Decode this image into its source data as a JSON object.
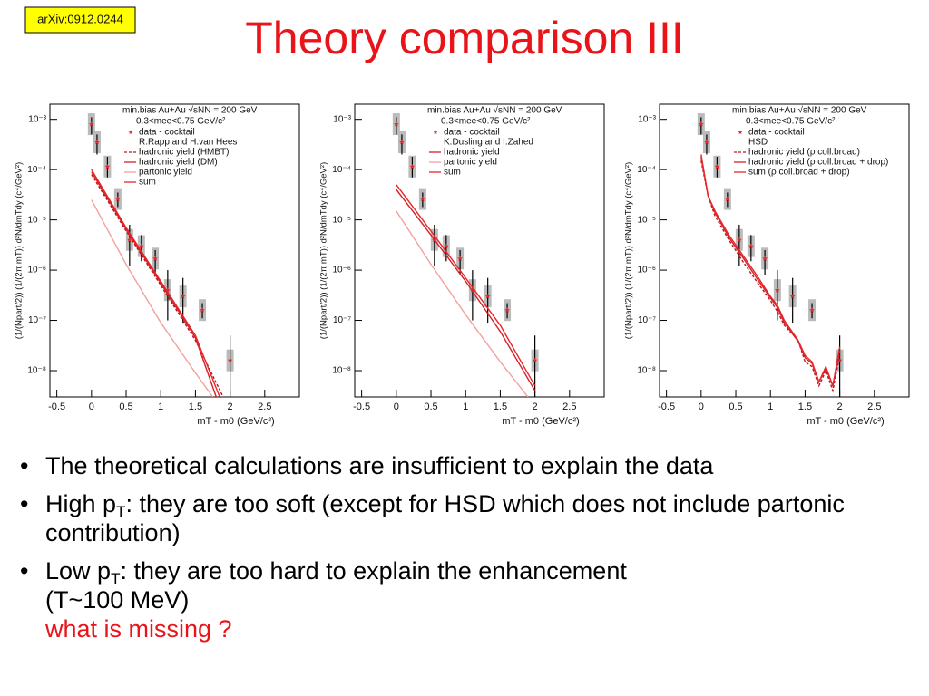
{
  "slide": {
    "title": "Theory comparison III",
    "reference": "arXiv:0912.0244",
    "bullets": [
      {
        "before": "The theoretical calculations are insufficient to explain the data"
      },
      {
        "before": "High p",
        "sub": "T",
        "after": ": they are too soft (except for HSD which does not include partonic contribution)"
      },
      {
        "before": "Low p",
        "sub": "T",
        "after": ": they are too hard to explain the enhancement",
        "line2": "(T~100 MeV)",
        "note": "what is missing ?"
      }
    ]
  },
  "chart_data": [
    {
      "type": "line",
      "log_y": true,
      "legend_header": [
        "min.bias Au+Au √sNN = 200 GeV",
        "0.3<mee<0.75 GeV/c²"
      ],
      "model": "R.Rapp and H.van Hees",
      "xlabel": "mT - m0 (GeV/c²)",
      "ylabel": "(1/(Npart/2)) (1/(2π mT)) d²N/dmTdy (c⁴/GeV²)",
      "xlim": [
        -0.6,
        3.0
      ],
      "ylim": [
        3e-09,
        0.002
      ],
      "xticks": [
        -0.5,
        0,
        0.5,
        1,
        1.5,
        2,
        2.5
      ],
      "yticks": [
        {
          "value": 1e-08,
          "label": "10⁻⁸"
        },
        {
          "value": 1e-07,
          "label": "10⁻⁷"
        },
        {
          "value": 1e-06,
          "label": "10⁻⁶"
        },
        {
          "value": 1e-05,
          "label": "10⁻⁵"
        },
        {
          "value": 0.0001,
          "label": "10⁻⁴"
        },
        {
          "value": 0.001,
          "label": "10⁻³"
        }
      ],
      "series": [
        {
          "name": "data - cocktail",
          "kind": "points",
          "color": "#e8262a",
          "x": [
            0,
            0.08,
            0.23,
            0.38,
            0.55,
            0.72,
            0.92,
            1.1,
            1.32,
            1.6,
            2.0
          ],
          "values": [
            0.0008,
            0.00035,
            0.000115,
            2.6e-05,
            4e-06,
            3e-06,
            1.7e-06,
            4e-07,
            3e-07,
            1.6e-07,
            1.6e-08
          ],
          "lower": [
            0.0005,
            0.0002,
            7e-05,
            1.8e-05,
            1.2e-06,
            1.5e-06,
            8e-07,
            1e-07,
            9e-08,
            1.1e-07,
            3e-09
          ],
          "upper": [
            0.0011,
            0.0005,
            0.00018,
            3.5e-05,
            8e-06,
            5e-06,
            2.5e-06,
            1e-06,
            7e-07,
            2.2e-07,
            5e-08
          ]
        },
        {
          "name": "hadronic yield (HMBT)",
          "dash": true,
          "color": "#c0141a",
          "x": [
            0,
            0.5,
            1.0,
            1.5,
            1.9
          ],
          "values": [
            8e-05,
            6e-06,
            5e-07,
            4e-08,
            3e-09
          ]
        },
        {
          "name": "hadronic yield (DM)",
          "color": "#d42026",
          "x": [
            0,
            0.5,
            1.0,
            1.5,
            1.8
          ],
          "values": [
            9e-05,
            6.5e-06,
            5.5e-07,
            4.5e-08,
            3e-09
          ]
        },
        {
          "name": "partonic yield",
          "color": "#f2a0a0",
          "x": [
            0,
            0.5,
            1.0,
            1.5,
            1.75
          ],
          "values": [
            2.5e-05,
            1.3e-06,
            9e-08,
            9e-09,
            3e-09
          ]
        },
        {
          "name": "sum",
          "color": "#e8262a",
          "x": [
            0,
            0.5,
            1.0,
            1.5,
            1.85
          ],
          "values": [
            0.0001,
            7e-06,
            6e-07,
            5e-08,
            3e-09
          ]
        }
      ]
    },
    {
      "type": "line",
      "log_y": true,
      "legend_header": [
        "min.bias Au+Au √sNN = 200 GeV",
        "0.3<mee<0.75 GeV/c²"
      ],
      "model": "K.Dusling and I.Zahed",
      "xlabel": "mT - m0 (GeV/c²)",
      "ylabel": "(1/(Npart/2)) (1/(2π mT)) d²N/dmTdy (c⁴/GeV²)",
      "xlim": [
        -0.6,
        3.0
      ],
      "ylim": [
        3e-09,
        0.002
      ],
      "xticks": [
        -0.5,
        0,
        0.5,
        1,
        1.5,
        2,
        2.5
      ],
      "yticks": [
        {
          "value": 1e-08,
          "label": "10⁻⁸"
        },
        {
          "value": 1e-07,
          "label": "10⁻⁷"
        },
        {
          "value": 1e-06,
          "label": "10⁻⁶"
        },
        {
          "value": 1e-05,
          "label": "10⁻⁵"
        },
        {
          "value": 0.0001,
          "label": "10⁻⁴"
        },
        {
          "value": 0.001,
          "label": "10⁻³"
        }
      ],
      "series": [
        {
          "name": "data - cocktail",
          "kind": "points",
          "color": "#e8262a",
          "x": [
            0,
            0.08,
            0.23,
            0.38,
            0.55,
            0.72,
            0.92,
            1.1,
            1.32,
            1.6,
            2.0
          ],
          "values": [
            0.0008,
            0.00035,
            0.000115,
            2.6e-05,
            4e-06,
            3e-06,
            1.7e-06,
            4e-07,
            3e-07,
            1.6e-07,
            1.6e-08
          ],
          "lower": [
            0.0005,
            0.0002,
            7e-05,
            1.8e-05,
            1.2e-06,
            1.5e-06,
            8e-07,
            1e-07,
            9e-08,
            1.1e-07,
            3e-09
          ],
          "upper": [
            0.0011,
            0.0005,
            0.00018,
            3.5e-05,
            8e-06,
            5e-06,
            2.5e-06,
            1e-06,
            7e-07,
            2.2e-07,
            5e-08
          ]
        },
        {
          "name": "hadronic yield",
          "color": "#d42026",
          "x": [
            0,
            0.5,
            1.0,
            1.5,
            2.0
          ],
          "values": [
            4e-05,
            5e-06,
            6e-07,
            6e-08,
            4e-09
          ]
        },
        {
          "name": "partonic yield",
          "color": "#f2a0a0",
          "x": [
            0,
            0.5,
            1.0,
            1.5,
            1.9
          ],
          "values": [
            1.5e-05,
            1.3e-06,
            1.3e-07,
            1.5e-08,
            3e-09
          ]
        },
        {
          "name": "sum",
          "color": "#e8262a",
          "x": [
            0,
            0.5,
            1.0,
            1.5,
            2.0
          ],
          "values": [
            5e-05,
            6e-06,
            7e-07,
            8e-08,
            5e-09
          ]
        }
      ]
    },
    {
      "type": "line",
      "log_y": true,
      "legend_header": [
        "min.bias Au+Au √sNN = 200 GeV",
        "0.3<mee<0.75 GeV/c²"
      ],
      "model": "HSD",
      "xlabel": "mT - m0 (GeV/c²)",
      "ylabel": "(1/(Npart/2)) (1/(2π mT)) d²N/dmTdy (c⁴/GeV²)",
      "xlim": [
        -0.6,
        3.0
      ],
      "ylim": [
        3e-09,
        0.002
      ],
      "xticks": [
        -0.5,
        0,
        0.5,
        1,
        1.5,
        2,
        2.5
      ],
      "yticks": [
        {
          "value": 1e-08,
          "label": "10⁻⁸"
        },
        {
          "value": 1e-07,
          "label": "10⁻⁷"
        },
        {
          "value": 1e-06,
          "label": "10⁻⁶"
        },
        {
          "value": 1e-05,
          "label": "10⁻⁵"
        },
        {
          "value": 0.0001,
          "label": "10⁻⁴"
        },
        {
          "value": 0.001,
          "label": "10⁻³"
        }
      ],
      "series": [
        {
          "name": "data - cocktail",
          "kind": "points",
          "color": "#e8262a",
          "x": [
            0,
            0.08,
            0.23,
            0.38,
            0.55,
            0.72,
            0.92,
            1.1,
            1.32,
            1.6,
            2.0
          ],
          "values": [
            0.0008,
            0.00035,
            0.000115,
            2.6e-05,
            4e-06,
            3e-06,
            1.7e-06,
            4e-07,
            3e-07,
            1.6e-07,
            1.6e-08
          ],
          "lower": [
            0.0005,
            0.0002,
            7e-05,
            1.8e-05,
            1.2e-06,
            1.5e-06,
            8e-07,
            1e-07,
            9e-08,
            1.1e-07,
            3e-09
          ],
          "upper": [
            0.0011,
            0.0005,
            0.00018,
            3.5e-05,
            8e-06,
            5e-06,
            2.5e-06,
            1e-06,
            7e-07,
            2.2e-07,
            5e-08
          ]
        },
        {
          "name": "hadronic yield (ρ coll.broad)",
          "dash": true,
          "color": "#c0141a",
          "x": [
            0,
            0.1,
            0.2,
            0.4,
            0.6,
            0.8,
            1.0,
            1.1,
            1.2,
            1.4,
            1.5,
            1.6,
            1.7,
            1.8,
            1.9,
            2.0
          ],
          "values": [
            0.00015,
            3e-05,
            1.2e-05,
            4e-06,
            1.5e-06,
            6e-07,
            2.5e-07,
            1.5e-07,
            8e-08,
            4e-08,
            1.5e-08,
            1.2e-08,
            5e-09,
            1e-08,
            4e-09,
            2e-08
          ]
        },
        {
          "name": "hadronic yield (ρ coll.broad + drop)",
          "color": "#d42026",
          "x": [
            0,
            0.1,
            0.2,
            0.4,
            0.6,
            0.8,
            1.0,
            1.1,
            1.2,
            1.4,
            1.5,
            1.6,
            1.7,
            1.8,
            1.9,
            2.0
          ],
          "values": [
            0.00018,
            3e-05,
            1.4e-05,
            4.5e-06,
            1.8e-06,
            7e-07,
            2.8e-07,
            1.8e-07,
            9e-08,
            3.8e-08,
            1.8e-08,
            1.4e-08,
            6e-09,
            1.1e-08,
            5e-09,
            2.5e-08
          ]
        },
        {
          "name": "sum (ρ coll.broad + drop)",
          "color": "#e8262a",
          "x": [
            0,
            0.1,
            0.2,
            0.4,
            0.6,
            0.8,
            1.0,
            1.1,
            1.2,
            1.4,
            1.5,
            1.6,
            1.7,
            1.8,
            1.9,
            2.0
          ],
          "values": [
            0.0002,
            3e-05,
            1.5e-05,
            5e-06,
            2e-06,
            8e-07,
            3e-07,
            2e-07,
            1e-07,
            4e-08,
            2e-08,
            1.5e-08,
            6e-09,
            1.2e-08,
            5e-09,
            3e-08
          ]
        }
      ]
    }
  ]
}
